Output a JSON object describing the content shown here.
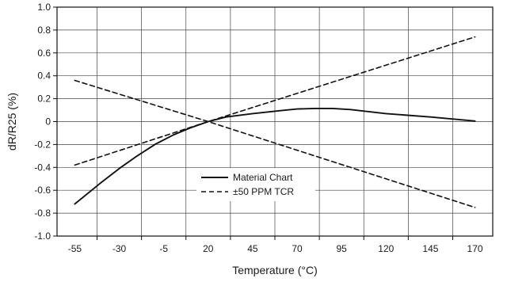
{
  "chart_data": {
    "type": "line",
    "title": "",
    "xlabel": "Temperature (°C)",
    "ylabel": "dR/R25 (%)",
    "xlim": [
      -65,
      180
    ],
    "ylim": [
      -1.0,
      1.0
    ],
    "x_ticks": [
      -55,
      -30,
      -5,
      20,
      45,
      70,
      95,
      120,
      145,
      170
    ],
    "x_tick_labels": [
      "-55",
      "-30",
      "-5",
      "20",
      "45",
      "70",
      "95",
      "120",
      "145",
      "170"
    ],
    "y_ticks": [
      1.0,
      0.8,
      0.6,
      0.4,
      0.2,
      0,
      -0.2,
      -0.4,
      -0.6,
      -0.8,
      -1.0
    ],
    "y_tick_labels": [
      "1.0",
      "0.8",
      "0.6",
      "0.4",
      "0.2",
      "0",
      "-0.2",
      "-0.4",
      "-0.6",
      "-0.8",
      "-1.0"
    ],
    "grid": true,
    "legend_position": "lower-center",
    "series": [
      {
        "name": "Material Chart",
        "style": "solid",
        "color": "#111111",
        "x": [
          -55,
          -40,
          -30,
          -20,
          -10,
          0,
          10,
          20,
          30,
          45,
          60,
          70,
          80,
          90,
          100,
          120,
          145,
          170
        ],
        "y": [
          -0.72,
          -0.53,
          -0.41,
          -0.3,
          -0.2,
          -0.12,
          -0.055,
          0.0,
          0.04,
          0.07,
          0.095,
          0.11,
          0.115,
          0.115,
          0.105,
          0.07,
          0.04,
          0.005
        ]
      },
      {
        "name": "±50 PPM TCR",
        "style": "dashed",
        "color": "#111111",
        "x": [
          -55,
          20,
          170
        ],
        "y": [
          -0.38,
          0.0,
          0.74
        ]
      },
      {
        "name": "",
        "style": "dashed",
        "color": "#111111",
        "x": [
          -55,
          20,
          170
        ],
        "y": [
          0.36,
          0.0,
          -0.75
        ]
      }
    ]
  }
}
